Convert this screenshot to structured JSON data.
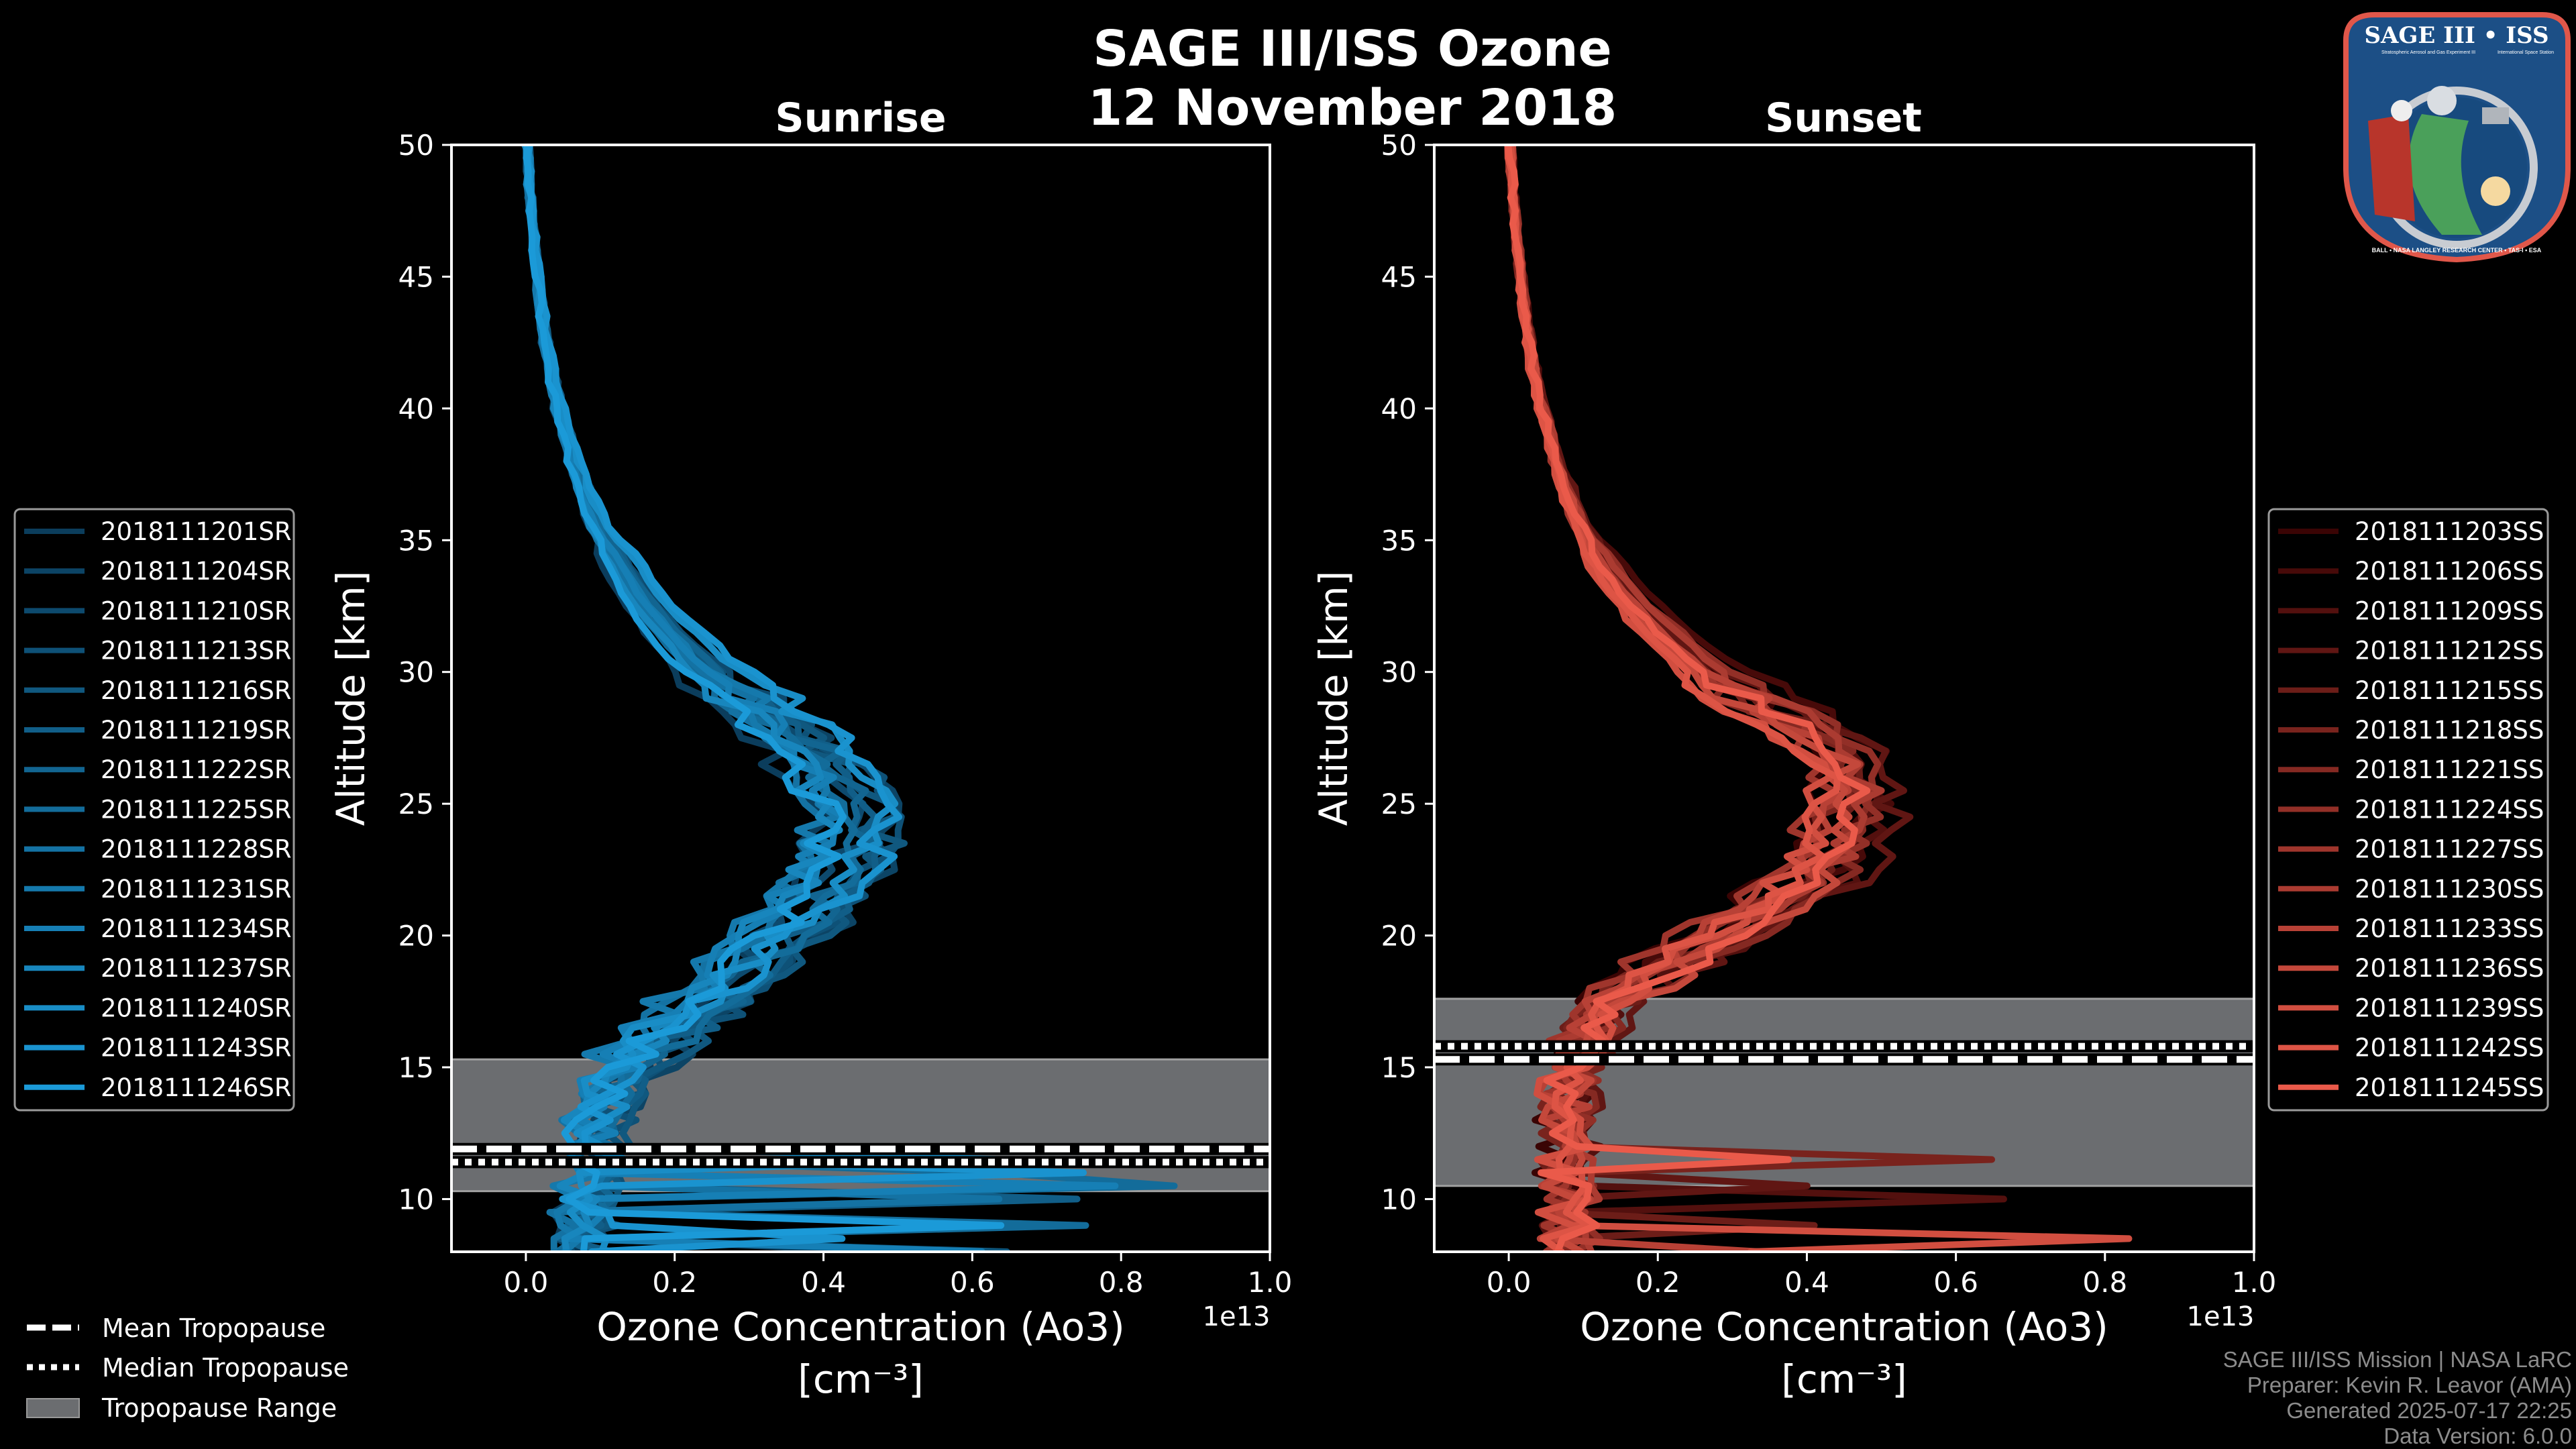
{
  "title": {
    "line1": "SAGE III/ISS Ozone",
    "line2": "12 November 2018"
  },
  "logo": {
    "text_top": "SAGE III • ISS",
    "text_sub1": "Stratospheric Aerosol and Gas Experiment III",
    "text_sub2": "International Space Station",
    "text_bottom": "BALL • NASA LANGLEY RESEARCH CENTER • TAS-I • ESA"
  },
  "footer": {
    "line1": "SAGE III/ISS Mission | NASA LaRC",
    "line2": "Preparer: Kevin R. Leavor (AMA)",
    "line3": "Generated 2025-07-17 22:25",
    "line4": "Data Version: 6.0.0"
  },
  "bottom_legend": {
    "mean": "Mean Tropopause",
    "median": "Median Tropopause",
    "range": "Tropopause Range"
  },
  "colors": {
    "range_fill": "#6b6d70",
    "sunrise_dark": "#0b3d5c",
    "sunrise_light": "#1b9ad8",
    "sunset_dark": "#3a0404",
    "sunset_light": "#ea5a4a"
  },
  "chart_data": [
    {
      "type": "line",
      "title": "Sunrise",
      "xlabel": "Ozone Concentration (Ao3)",
      "xunits": "[cm⁻³]",
      "ylabel": "Altitude [km]",
      "x_offset_label": "1e13",
      "xlim": [
        -0.1,
        1.0
      ],
      "ylim": [
        8,
        50
      ],
      "xticks": [
        "0.0",
        "0.2",
        "0.4",
        "0.6",
        "0.8",
        "1.0"
      ],
      "yticks": [
        "10",
        "15",
        "20",
        "25",
        "30",
        "35",
        "40",
        "45",
        "50"
      ],
      "tropopause": {
        "mean": 11.9,
        "median": 11.4,
        "range": [
          10.3,
          15.3
        ]
      },
      "mean_profile": {
        "altitude": [
          8,
          9,
          10,
          11,
          12,
          13,
          14,
          15,
          16,
          17,
          18,
          19,
          20,
          21,
          22,
          23,
          24,
          25,
          26,
          27,
          28,
          29,
          30,
          32,
          34,
          36,
          38,
          40,
          42,
          44,
          46,
          48,
          50
        ],
        "value": [
          0.07,
          0.08,
          0.08,
          0.09,
          0.09,
          0.1,
          0.11,
          0.13,
          0.17,
          0.22,
          0.26,
          0.3,
          0.34,
          0.38,
          0.41,
          0.43,
          0.44,
          0.44,
          0.42,
          0.39,
          0.35,
          0.3,
          0.25,
          0.18,
          0.13,
          0.09,
          0.065,
          0.045,
          0.03,
          0.02,
          0.012,
          0.006,
          0.002
        ]
      },
      "series": [
        "2018111201SR",
        "2018111204SR",
        "2018111210SR",
        "2018111213SR",
        "2018111216SR",
        "2018111219SR",
        "2018111222SR",
        "2018111225SR",
        "2018111228SR",
        "2018111231SR",
        "2018111234SR",
        "2018111237SR",
        "2018111240SR",
        "2018111243SR",
        "2018111246SR"
      ],
      "legend_position": "left"
    },
    {
      "type": "line",
      "title": "Sunset",
      "xlabel": "Ozone Concentration (Ao3)",
      "xunits": "[cm⁻³]",
      "ylabel": "Altitude [km]",
      "x_offset_label": "1e13",
      "xlim": [
        -0.1,
        1.0
      ],
      "ylim": [
        8,
        50
      ],
      "xticks": [
        "0.0",
        "0.2",
        "0.4",
        "0.6",
        "0.8",
        "1.0"
      ],
      "yticks": [
        "10",
        "15",
        "20",
        "25",
        "30",
        "35",
        "40",
        "45",
        "50"
      ],
      "tropopause": {
        "mean": 15.3,
        "median": 15.8,
        "range": [
          10.5,
          17.6
        ]
      },
      "mean_profile": {
        "altitude": [
          8,
          9,
          10,
          11,
          12,
          13,
          14,
          15,
          16,
          17,
          18,
          19,
          20,
          21,
          22,
          23,
          24,
          25,
          26,
          27,
          28,
          29,
          30,
          32,
          34,
          36,
          38,
          40,
          42,
          44,
          46,
          48,
          50
        ],
        "value": [
          0.08,
          0.08,
          0.08,
          0.08,
          0.08,
          0.08,
          0.08,
          0.09,
          0.1,
          0.12,
          0.16,
          0.22,
          0.28,
          0.34,
          0.4,
          0.44,
          0.45,
          0.46,
          0.46,
          0.45,
          0.4,
          0.33,
          0.27,
          0.19,
          0.13,
          0.09,
          0.065,
          0.045,
          0.03,
          0.02,
          0.012,
          0.006,
          0.002
        ]
      },
      "series": [
        "2018111203SS",
        "2018111206SS",
        "2018111209SS",
        "2018111212SS",
        "2018111215SS",
        "2018111218SS",
        "2018111221SS",
        "2018111224SS",
        "2018111227SS",
        "2018111230SS",
        "2018111233SS",
        "2018111236SS",
        "2018111239SS",
        "2018111242SS",
        "2018111245SS"
      ],
      "legend_position": "right"
    }
  ]
}
